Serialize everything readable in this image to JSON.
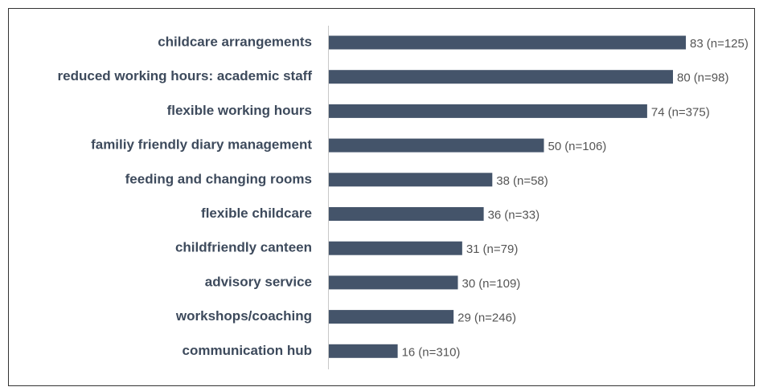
{
  "chart_data": {
    "type": "bar",
    "orientation": "horizontal",
    "categories": [
      "childcare arrangements",
      "reduced working hours: academic staff",
      "flexible working hours",
      "familiy friendly diary management",
      "feeding and changing rooms",
      "flexible childcare",
      "childfriendly canteen",
      "advisory service",
      "workshops/coaching",
      "communication hub"
    ],
    "values": [
      83,
      80,
      74,
      50,
      38,
      36,
      31,
      30,
      29,
      16
    ],
    "annotations": [
      "(n=125)",
      "(n=98)",
      "(n=375)",
      "(n=106)",
      "(n=58)",
      "(n=33)",
      "(n=79)",
      "(n=109)",
      "(n=246)",
      "(n=310)"
    ],
    "color": "#44546a",
    "xlim": [
      0,
      100
    ]
  }
}
